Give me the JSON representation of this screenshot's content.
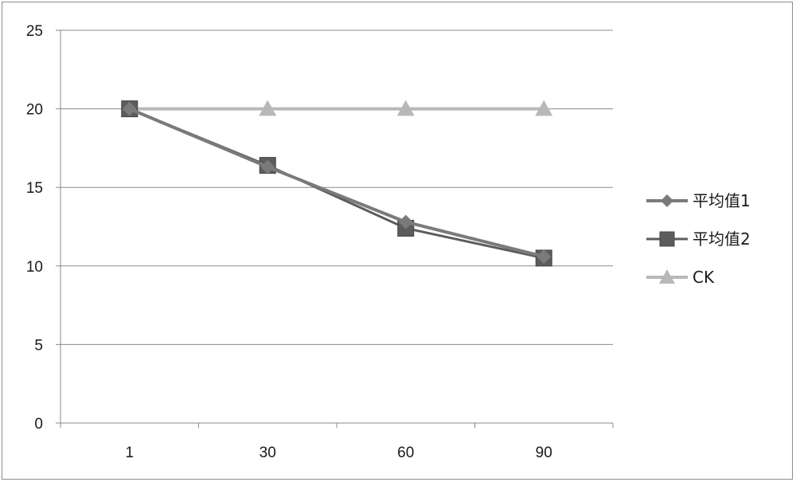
{
  "chart_data": {
    "type": "line",
    "categories": [
      "1",
      "30",
      "60",
      "90"
    ],
    "ylim": [
      0,
      25
    ],
    "yticks": [
      0,
      5,
      10,
      15,
      20,
      25
    ],
    "grid": true,
    "legend_position": "right",
    "series": [
      {
        "name": "平均值1",
        "values": [
          20.0,
          16.3,
          12.8,
          10.6
        ],
        "color": "#7a7a7a",
        "marker": "diamond"
      },
      {
        "name": "平均值2",
        "values": [
          20.0,
          16.4,
          12.4,
          10.5
        ],
        "color": "#5c5c5c",
        "marker": "square"
      },
      {
        "name": "CK",
        "values": [
          20.0,
          20.0,
          20.0,
          20.0
        ],
        "color": "#b8b8b8",
        "marker": "triangle"
      }
    ]
  }
}
